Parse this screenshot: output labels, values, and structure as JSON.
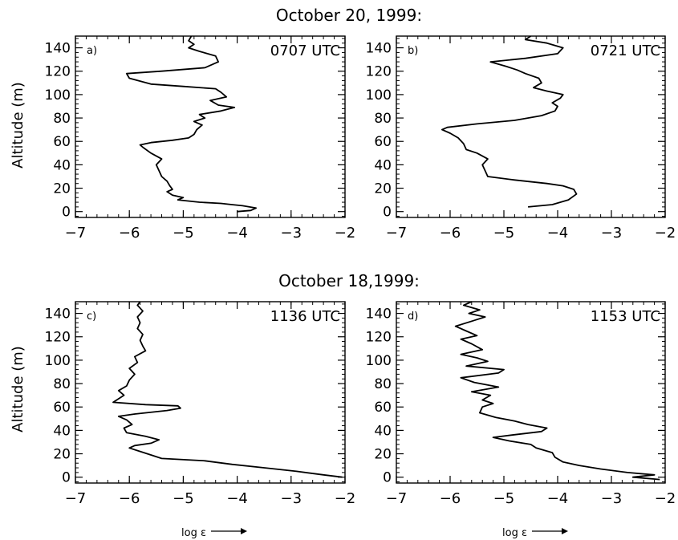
{
  "figure": {
    "group1_title": "October 20, 1999:",
    "group2_title": "October 18,1999:",
    "ylabel": "Altitude (m)",
    "xlabel": "log ε",
    "yticks": [
      "0",
      "20",
      "40",
      "60",
      "80",
      "100",
      "120",
      "140"
    ],
    "xticks": [
      "−7",
      "−6",
      "−5",
      "−4",
      "−3",
      "−2"
    ]
  },
  "chart_data": [
    {
      "type": "line",
      "panel": "a)",
      "time_label": "0707 UTC",
      "xlim": [
        -7,
        -2
      ],
      "ylim": [
        -5,
        150
      ],
      "x_axis": "log ε",
      "y_axis": "Altitude (m)",
      "series": [
        {
          "points": [
            [
              -4.0,
              0
            ],
            [
              -3.75,
              1
            ],
            [
              -3.65,
              3
            ],
            [
              -3.9,
              5
            ],
            [
              -4.1,
              6
            ],
            [
              -4.3,
              7
            ],
            [
              -4.7,
              8
            ],
            [
              -5.1,
              10
            ],
            [
              -5.0,
              12
            ],
            [
              -5.2,
              14
            ],
            [
              -5.3,
              17
            ],
            [
              -5.2,
              19
            ],
            [
              -5.25,
              22
            ],
            [
              -5.3,
              26
            ],
            [
              -5.4,
              30
            ],
            [
              -5.45,
              35
            ],
            [
              -5.5,
              40
            ],
            [
              -5.4,
              45
            ],
            [
              -5.6,
              50
            ],
            [
              -5.75,
              55
            ],
            [
              -5.8,
              57
            ],
            [
              -5.6,
              59
            ],
            [
              -5.2,
              61
            ],
            [
              -4.9,
              63
            ],
            [
              -4.8,
              66
            ],
            [
              -4.75,
              70
            ],
            [
              -4.65,
              74
            ],
            [
              -4.8,
              77
            ],
            [
              -4.6,
              80
            ],
            [
              -4.7,
              83
            ],
            [
              -4.3,
              86
            ],
            [
              -4.05,
              89
            ],
            [
              -4.35,
              91
            ],
            [
              -4.5,
              95
            ],
            [
              -4.2,
              98
            ],
            [
              -4.3,
              102
            ],
            [
              -4.4,
              105
            ],
            [
              -5.0,
              107
            ],
            [
              -5.6,
              109
            ],
            [
              -6.0,
              114
            ],
            [
              -6.05,
              118
            ],
            [
              -5.4,
              120
            ],
            [
              -4.6,
              123
            ],
            [
              -4.35,
              128
            ],
            [
              -4.4,
              133
            ],
            [
              -4.7,
              137
            ],
            [
              -4.9,
              140
            ],
            [
              -4.8,
              143
            ],
            [
              -4.9,
              146
            ],
            [
              -4.85,
              150
            ]
          ]
        }
      ]
    },
    {
      "type": "line",
      "panel": "b)",
      "time_label": "0721 UTC",
      "xlim": [
        -7,
        -2
      ],
      "ylim": [
        -5,
        150
      ],
      "x_axis": "log ε",
      "y_axis": "Altitude (m)",
      "series": [
        {
          "points": [
            [
              -4.55,
              4
            ],
            [
              -4.1,
              6
            ],
            [
              -3.8,
              10
            ],
            [
              -3.65,
              15
            ],
            [
              -3.7,
              19
            ],
            [
              -3.9,
              22
            ],
            [
              -4.2,
              24
            ],
            [
              -4.8,
              27
            ],
            [
              -5.3,
              30
            ],
            [
              -5.35,
              35
            ],
            [
              -5.4,
              40
            ],
            [
              -5.3,
              45
            ],
            [
              -5.5,
              50
            ],
            [
              -5.7,
              53
            ],
            [
              -5.75,
              58
            ],
            [
              -5.85,
              63
            ],
            [
              -6.0,
              67
            ],
            [
              -6.15,
              70
            ],
            [
              -6.05,
              72
            ],
            [
              -5.5,
              75
            ],
            [
              -4.8,
              78
            ],
            [
              -4.3,
              82
            ],
            [
              -4.05,
              86
            ],
            [
              -4.0,
              90
            ],
            [
              -4.1,
              93
            ],
            [
              -3.95,
              97
            ],
            [
              -3.9,
              100
            ],
            [
              -4.2,
              103
            ],
            [
              -4.45,
              106
            ],
            [
              -4.3,
              110
            ],
            [
              -4.35,
              114
            ],
            [
              -4.6,
              118
            ],
            [
              -4.75,
              121
            ],
            [
              -4.95,
              124
            ],
            [
              -5.25,
              128
            ],
            [
              -4.6,
              131
            ],
            [
              -4.0,
              135
            ],
            [
              -3.9,
              140
            ],
            [
              -4.2,
              144
            ],
            [
              -4.6,
              147
            ],
            [
              -4.5,
              150
            ]
          ]
        }
      ]
    },
    {
      "type": "line",
      "panel": "c)",
      "time_label": "1136 UTC",
      "xlim": [
        -7,
        -2
      ],
      "ylim": [
        -5,
        150
      ],
      "x_axis": "log ε",
      "y_axis": "Altitude (m)",
      "series": [
        {
          "points": [
            [
              -2.05,
              0
            ],
            [
              -2.4,
              2
            ],
            [
              -2.9,
              5
            ],
            [
              -3.5,
              8
            ],
            [
              -4.1,
              11
            ],
            [
              -4.6,
              14
            ],
            [
              -5.4,
              16
            ],
            [
              -5.6,
              19
            ],
            [
              -5.8,
              22
            ],
            [
              -6.0,
              25
            ],
            [
              -5.9,
              27
            ],
            [
              -5.6,
              29
            ],
            [
              -5.45,
              32
            ],
            [
              -5.7,
              35
            ],
            [
              -6.05,
              38
            ],
            [
              -6.1,
              42
            ],
            [
              -5.95,
              45
            ],
            [
              -6.05,
              49
            ],
            [
              -6.2,
              52
            ],
            [
              -5.9,
              54
            ],
            [
              -5.3,
              57
            ],
            [
              -5.05,
              59
            ],
            [
              -5.1,
              61
            ],
            [
              -5.7,
              62
            ],
            [
              -6.3,
              64
            ],
            [
              -6.2,
              67
            ],
            [
              -6.1,
              70
            ],
            [
              -6.2,
              74
            ],
            [
              -6.05,
              78
            ],
            [
              -6.0,
              83
            ],
            [
              -5.9,
              88
            ],
            [
              -6.0,
              93
            ],
            [
              -5.85,
              98
            ],
            [
              -5.9,
              103
            ],
            [
              -5.7,
              108
            ],
            [
              -5.75,
              112
            ],
            [
              -5.8,
              117
            ],
            [
              -5.75,
              122
            ],
            [
              -5.85,
              127
            ],
            [
              -5.8,
              132
            ],
            [
              -5.85,
              137
            ],
            [
              -5.75,
              142
            ],
            [
              -5.85,
              147
            ],
            [
              -5.8,
              150
            ]
          ]
        }
      ]
    },
    {
      "type": "line",
      "panel": "d)",
      "time_label": "1153 UTC",
      "xlim": [
        -7,
        -2
      ],
      "ylim": [
        -5,
        150
      ],
      "x_axis": "log ε",
      "y_axis": "Altitude (m)",
      "series": [
        {
          "points": [
            [
              -2.1,
              -2
            ],
            [
              -2.6,
              0
            ],
            [
              -2.2,
              2
            ],
            [
              -2.7,
              4
            ],
            [
              -3.2,
              7
            ],
            [
              -3.6,
              10
            ],
            [
              -3.9,
              13
            ],
            [
              -4.05,
              17
            ],
            [
              -4.1,
              21
            ],
            [
              -4.4,
              25
            ],
            [
              -4.5,
              28
            ],
            [
              -4.9,
              31
            ],
            [
              -5.2,
              34
            ],
            [
              -4.85,
              36
            ],
            [
              -4.3,
              39
            ],
            [
              -4.2,
              42
            ],
            [
              -4.55,
              45
            ],
            [
              -4.8,
              48
            ],
            [
              -5.15,
              51
            ],
            [
              -5.45,
              55
            ],
            [
              -5.4,
              60
            ],
            [
              -5.2,
              63
            ],
            [
              -5.4,
              66
            ],
            [
              -5.25,
              70
            ],
            [
              -5.6,
              73
            ],
            [
              -5.1,
              77
            ],
            [
              -5.55,
              81
            ],
            [
              -5.8,
              85
            ],
            [
              -5.1,
              89
            ],
            [
              -5.0,
              92
            ],
            [
              -5.7,
              95
            ],
            [
              -5.3,
              99
            ],
            [
              -5.5,
              102
            ],
            [
              -5.8,
              105
            ],
            [
              -5.4,
              109
            ],
            [
              -5.6,
              114
            ],
            [
              -5.8,
              118
            ],
            [
              -5.5,
              121
            ],
            [
              -5.7,
              125
            ],
            [
              -5.9,
              129
            ],
            [
              -5.55,
              134
            ],
            [
              -5.35,
              137
            ],
            [
              -5.65,
              140
            ],
            [
              -5.45,
              143
            ],
            [
              -5.75,
              147
            ],
            [
              -5.6,
              150
            ]
          ]
        }
      ]
    }
  ]
}
